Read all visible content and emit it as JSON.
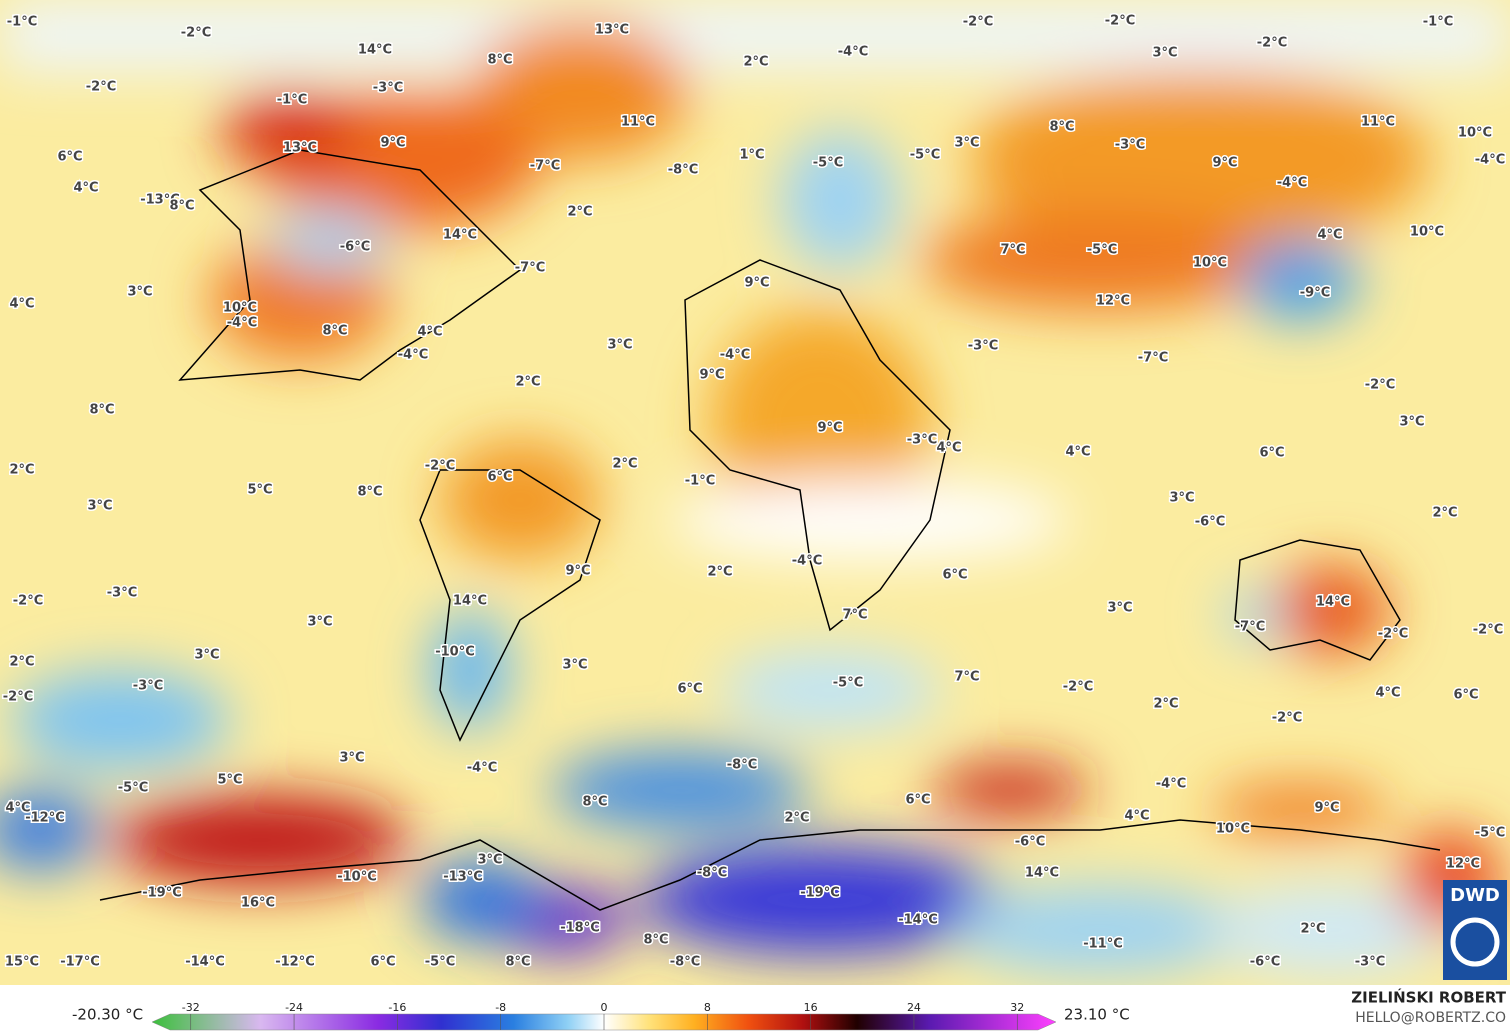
{
  "map": {
    "labels": [
      "-1°C",
      "-2°C",
      "14°C",
      "13°C",
      "-4°C",
      "-2°C",
      "-2°C",
      "-1°C",
      "-2°C",
      "3°C",
      "8°C",
      "2°C",
      "-2°C",
      "-3°C",
      "-1°C",
      "11°C",
      "11°C",
      "10°C",
      "13°C",
      "9°C",
      "3°C",
      "8°C",
      "-3°C",
      "6°C",
      "-7°C",
      "-8°C",
      "1°C",
      "-5°C",
      "-5°C",
      "9°C",
      "-4°C",
      "4°C",
      "-4°C",
      "-13°C",
      "8°C",
      "2°C",
      "-6°C",
      "14°C",
      "4°C",
      "10°C",
      "7°C",
      "-5°C",
      "-7°C",
      "10°C",
      "4°C",
      "3°C",
      "10°C",
      "-4°C",
      "9°C",
      "-9°C",
      "12°C",
      "8°C",
      "4°C",
      "3°C",
      "-3°C",
      "-4°C",
      "-4°C",
      "-7°C",
      "2°C",
      "9°C",
      "-2°C",
      "8°C",
      "9°C",
      "-3°C",
      "4°C",
      "3°C",
      "4°C",
      "6°C",
      "2°C",
      "-2°C",
      "2°C",
      "6°C",
      "-1°C",
      "5°C",
      "8°C",
      "3°C",
      "3°C",
      "-6°C",
      "2°C",
      "9°C",
      "2°C",
      "-4°C",
      "6°C",
      "-2°C",
      "-3°C",
      "14°C",
      "3°C",
      "14°C",
      "-7°C",
      "-2°C",
      "-2°C",
      "3°C",
      "7°C",
      "-10°C",
      "3°C",
      "3°C",
      "2°C",
      "-3°C",
      "-5°C",
      "7°C",
      "-2°C",
      "6°C",
      "-2°C",
      "2°C",
      "4°C",
      "6°C",
      "-2°C",
      "3°C",
      "-4°C",
      "-8°C",
      "5°C",
      "-5°C",
      "-4°C",
      "4°C",
      "-12°C",
      "8°C",
      "6°C",
      "4°C",
      "9°C",
      "2°C",
      "10°C",
      "-5°C",
      "-6°C",
      "3°C",
      "12°C",
      "-10°C",
      "-13°C",
      "-8°C",
      "14°C",
      "-19°C",
      "-19°C",
      "16°C",
      "-14°C",
      "-18°C",
      "8°C",
      "-11°C",
      "2°C",
      "15°C",
      "-17°C",
      "-14°C",
      "-12°C",
      "6°C",
      "-5°C",
      "8°C",
      "-8°C",
      "-6°C",
      "-3°C"
    ],
    "min_label": "-20.30 °C",
    "max_label": "23.10 °C",
    "author": "ZIELIŃSKI ROBERT",
    "contact": "HELLO@ROBERTZ.CO",
    "logo": "DWD"
  },
  "colorbar": {
    "lim": [
      -35,
      35
    ],
    "ticks": [
      -32,
      -24,
      -16,
      -8,
      0,
      8,
      16,
      24,
      32
    ]
  }
}
